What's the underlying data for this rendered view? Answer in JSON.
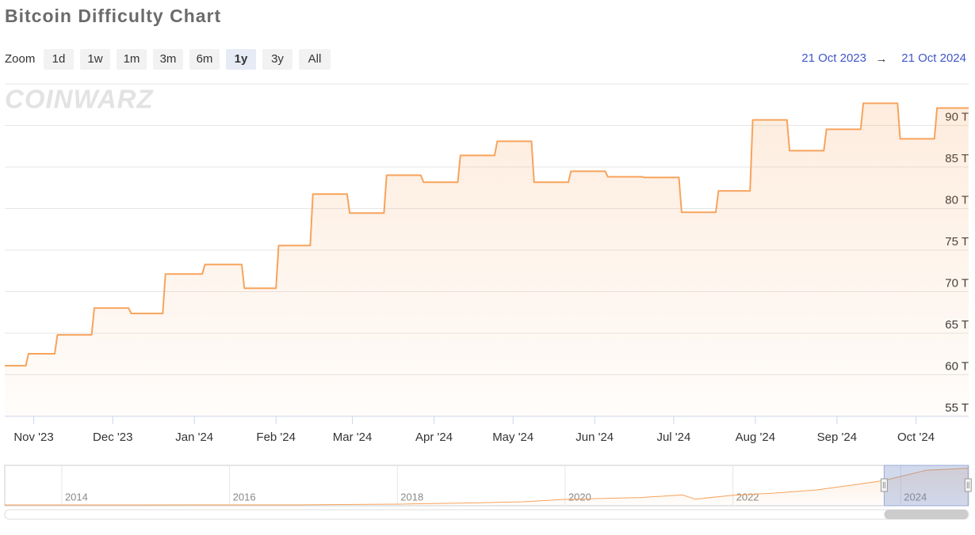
{
  "watermark": "COINWARZ",
  "zoom": {
    "label": "Zoom",
    "buttons": [
      "1d",
      "1w",
      "1m",
      "3m",
      "6m",
      "1y",
      "3y",
      "All"
    ],
    "selected": "1y"
  },
  "range": {
    "from": "21 Oct 2023",
    "separator": "→",
    "to": "21 Oct 2024"
  },
  "chart_data": [
    {
      "type": "area",
      "title": "Bitcoin Difficulty Chart",
      "x": [
        "2023-10-21",
        "2023-10-29",
        "2023-10-30",
        "2023-11-09",
        "2023-11-10",
        "2023-11-23",
        "2023-11-24",
        "2023-12-07",
        "2023-12-08",
        "2023-12-20",
        "2023-12-21",
        "2024-01-04",
        "2024-01-05",
        "2024-01-19",
        "2024-01-20",
        "2024-02-01",
        "2024-02-02",
        "2024-02-14",
        "2024-02-15",
        "2024-02-28",
        "2024-02-29",
        "2024-03-13",
        "2024-03-14",
        "2024-03-27",
        "2024-03-28",
        "2024-04-10",
        "2024-04-11",
        "2024-04-24",
        "2024-04-25",
        "2024-05-08",
        "2024-05-09",
        "2024-05-22",
        "2024-05-23",
        "2024-06-05",
        "2024-06-06",
        "2024-06-19",
        "2024-06-20",
        "2024-07-03",
        "2024-07-04",
        "2024-07-17",
        "2024-07-18",
        "2024-07-30",
        "2024-07-31",
        "2024-08-13",
        "2024-08-14",
        "2024-08-27",
        "2024-08-28",
        "2024-09-10",
        "2024-09-11",
        "2024-09-24",
        "2024-09-25",
        "2024-10-08",
        "2024-10-09",
        "2024-10-21"
      ],
      "series": [
        {
          "color": "#f7a35c",
          "values": [
            61.09,
            61.09,
            62.52,
            62.52,
            64.8,
            64.8,
            68.03,
            68.03,
            67.37,
            67.37,
            72.12,
            72.12,
            73.27,
            73.27,
            70.41,
            70.41,
            75.55,
            75.55,
            81.73,
            81.73,
            79.45,
            79.45,
            84.01,
            84.01,
            83.16,
            83.16,
            86.39,
            86.39,
            88.1,
            88.1,
            83.16,
            83.16,
            84.49,
            84.49,
            83.82,
            83.82,
            83.73,
            83.73,
            79.54,
            79.54,
            82.11,
            82.11,
            90.67,
            90.67,
            86.96,
            86.96,
            89.53,
            89.53,
            92.67,
            92.67,
            88.39,
            88.39,
            92.1,
            92.1
          ]
        }
      ],
      "xlim": [
        "2023-10-21",
        "2024-10-21"
      ],
      "xticks": [
        {
          "value": "2023-11-01",
          "label": "Nov '23"
        },
        {
          "value": "2023-12-01",
          "label": "Dec '23"
        },
        {
          "value": "2024-01-01",
          "label": "Jan '24"
        },
        {
          "value": "2024-02-01",
          "label": "Feb '24"
        },
        {
          "value": "2024-03-01",
          "label": "Mar '24"
        },
        {
          "value": "2024-04-01",
          "label": "Apr '24"
        },
        {
          "value": "2024-05-01",
          "label": "May '24"
        },
        {
          "value": "2024-06-01",
          "label": "Jun '24"
        },
        {
          "value": "2024-07-01",
          "label": "Jul '24"
        },
        {
          "value": "2024-08-01",
          "label": "Aug '24"
        },
        {
          "value": "2024-09-01",
          "label": "Sep '24"
        },
        {
          "value": "2024-10-01",
          "label": "Oct '24"
        }
      ],
      "ylim": [
        55,
        95
      ],
      "yticks": [
        {
          "value": 55,
          "label": "55 T"
        },
        {
          "value": 60,
          "label": "60 T"
        },
        {
          "value": 65,
          "label": "65 T"
        },
        {
          "value": 70,
          "label": "70 T"
        },
        {
          "value": 75,
          "label": "75 T"
        },
        {
          "value": 80,
          "label": "80 T"
        },
        {
          "value": 85,
          "label": "85 T"
        },
        {
          "value": 90,
          "label": "90 T"
        }
      ],
      "grid": true
    },
    {
      "type": "area",
      "x": [
        2013.32,
        2014,
        2015,
        2016,
        2017,
        2018,
        2019,
        2019.5,
        2020,
        2020.9,
        2021.4,
        2021.55,
        2022,
        2022.5,
        2023,
        2023.5,
        2023.8,
        2024.3,
        2024.81
      ],
      "series": [
        {
          "color": "#f7a35c",
          "values": [
            0,
            0,
            0.04,
            0.1,
            0.3,
            1.9,
            5.6,
            7.9,
            13.8,
            18.7,
            25,
            14.4,
            24.4,
            29.6,
            37.6,
            52,
            61.1,
            86.4,
            92.1
          ]
        }
      ],
      "xlim": [
        2013.32,
        2024.81
      ],
      "xticks": [
        2014,
        2016,
        2018,
        2020,
        2022,
        2024
      ],
      "ylim": [
        0,
        95
      ],
      "grid": true
    }
  ]
}
